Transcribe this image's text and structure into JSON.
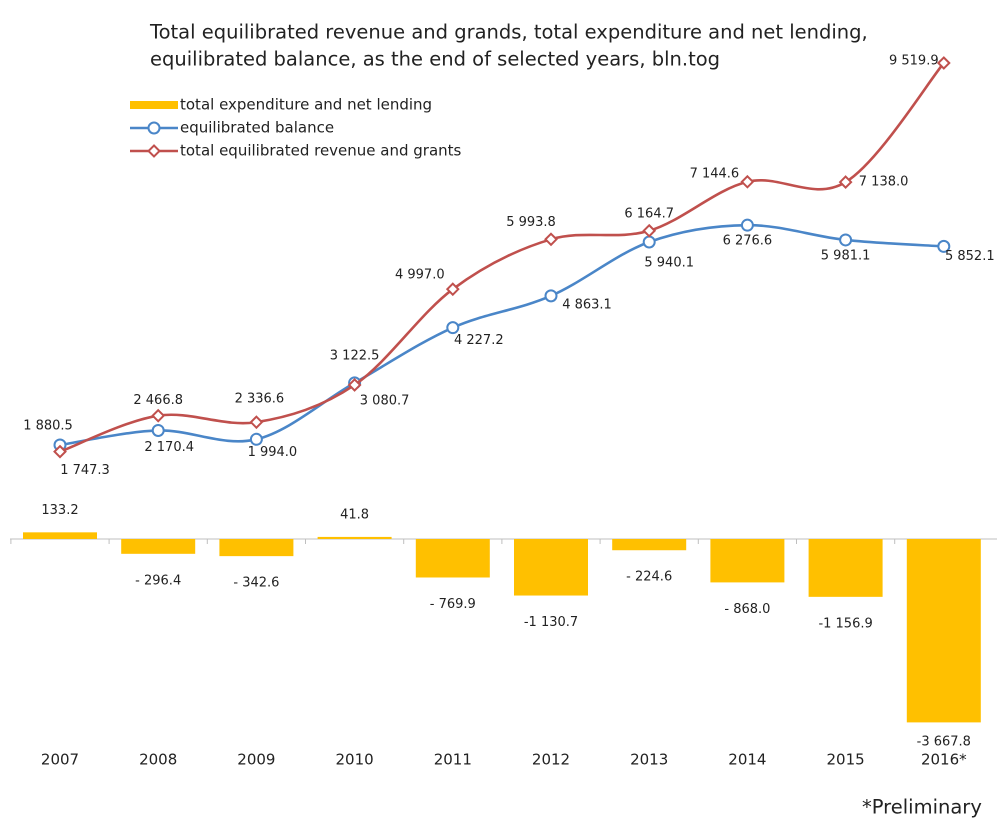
{
  "chart_data": {
    "type": "bar-line",
    "title": "Total equilibrated revenue and grands, total expenditure and net lending,",
    "subtitle": "equilibrated balance, as the end of selected years, bln.tog",
    "categories": [
      "2007",
      "2008",
      "2009",
      "2010",
      "2011",
      "2012",
      "2013",
      "2014",
      "2015",
      "2016*"
    ],
    "series": [
      {
        "name": "total expenditure and net lending",
        "type": "bar",
        "color": "#ffc000",
        "values": [
          133.2,
          -296.4,
          -342.6,
          41.8,
          -769.9,
          -1130.7,
          -224.6,
          -868.0,
          -1156.9,
          -3667.8
        ],
        "value_labels": [
          "133.2",
          "- 296.4",
          "- 342.6",
          "41.8",
          "- 769.9",
          "-1 130.7",
          "- 224.6",
          "- 868.0",
          "-1 156.9",
          "-3 667.8"
        ]
      },
      {
        "name": "equilibrated balance",
        "type": "line",
        "marker": "circle",
        "color": "#4a86c8",
        "values": [
          1880.5,
          2170.4,
          1994.0,
          3122.5,
          4227.2,
          4863.1,
          5940.1,
          6276.6,
          5981.1,
          5852.1
        ],
        "value_labels": [
          "1 880.5",
          "2 170.4",
          "1 994.0",
          "3 122.5",
          "4 227.2",
          "4 863.1",
          "5 940.1",
          "6 276.6",
          "5 981.1",
          "5 852.1"
        ]
      },
      {
        "name": "total equilibrated revenue and grants",
        "type": "line",
        "marker": "diamond",
        "color": "#c0504d",
        "values": [
          1747.3,
          2466.8,
          2336.6,
          3080.7,
          4997.0,
          5993.8,
          6164.7,
          7144.6,
          7138.0,
          9519.9
        ],
        "value_labels": [
          "1 747.3",
          "2 466.8",
          "2 336.6",
          "3 080.7",
          "4 997.0",
          "5 993.8",
          "6 164.7",
          "7 144.6",
          "7 138.0",
          "9 519.9"
        ]
      }
    ],
    "ylim": [
      -4000,
      10000
    ],
    "note": "*Preliminary"
  }
}
